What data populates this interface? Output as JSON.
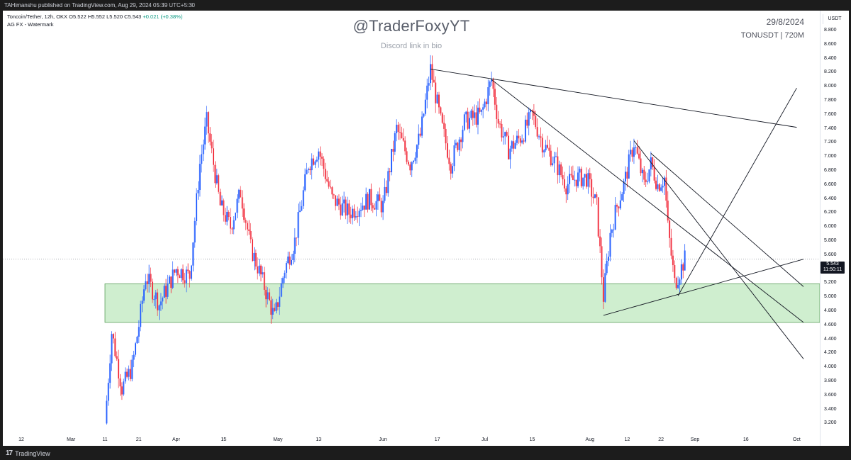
{
  "header": {
    "publish_line": "TAHimanshu published on TradingView.com, Aug 29, 2024 05:39 UTC+5:30"
  },
  "legend": {
    "symbol_line": "Toncoin/Tether, 12h, OKX  O5.522  H5.552  L5.520  C5.543",
    "change": "+0.021 (+0.38%)",
    "indicator": "AG FX - Watermark"
  },
  "watermark": {
    "handle": "@TraderFoxyYT",
    "subtitle": "Discord link in bio",
    "date": "29/8/2024",
    "symbol": "TONUSDT | 720M"
  },
  "price_axis": {
    "currency": "USDT",
    "last_price": "5.543",
    "countdown": "11:50:11"
  },
  "footer": {
    "brand": "TradingView"
  },
  "colors": {
    "up_candle": "#2962ff",
    "down_candle": "#f23645",
    "support_zone": "#bfe8bf",
    "trendline": "#131722"
  },
  "chart_data": {
    "type": "candlestick",
    "symbol": "TONUSDT",
    "timeframe": "12h",
    "ylim": [
      3.1,
      8.9
    ],
    "y_ticks": [
      "8.800",
      "8.600",
      "8.400",
      "8.200",
      "8.000",
      "7.800",
      "7.600",
      "7.400",
      "7.200",
      "7.000",
      "6.800",
      "6.600",
      "6.400",
      "6.200",
      "6.000",
      "5.800",
      "5.600",
      "5.400",
      "5.200",
      "5.000",
      "4.800",
      "4.600",
      "4.400",
      "4.200",
      "4.000",
      "3.800",
      "3.600",
      "3.400",
      "3.200"
    ],
    "x_ticks": [
      "12",
      "Mar",
      "11",
      "21",
      "Apr",
      "15",
      "May",
      "13",
      "Jun",
      "17",
      "Jul",
      "15",
      "Aug",
      "12",
      "22",
      "Sep",
      "16",
      "Oct"
    ],
    "support_zone": {
      "low": 4.64,
      "high": 5.19
    },
    "price_path": [
      [
        "Mar 11",
        3.2
      ],
      [
        "Mar 13",
        4.5
      ],
      [
        "Mar 16",
        3.7
      ],
      [
        "Mar 19",
        4.0
      ],
      [
        "Mar 21",
        4.6
      ],
      [
        "Mar 23",
        5.3
      ],
      [
        "Mar 27",
        4.9
      ],
      [
        "Apr 1",
        5.4
      ],
      [
        "Apr 5",
        5.3
      ],
      [
        "Apr 8",
        6.9
      ],
      [
        "Apr 10",
        7.5
      ],
      [
        "Apr 12",
        6.9
      ],
      [
        "Apr 14",
        6.3
      ],
      [
        "Apr 17",
        6.0
      ],
      [
        "Apr 20",
        6.5
      ],
      [
        "Apr 23",
        5.7
      ],
      [
        "Apr 26",
        5.3
      ],
      [
        "Apr 30",
        4.7
      ],
      [
        "May 3",
        5.4
      ],
      [
        "May 6",
        5.8
      ],
      [
        "May 10",
        6.9
      ],
      [
        "May 13",
        7.1
      ],
      [
        "May 17",
        6.4
      ],
      [
        "May 22",
        6.2
      ],
      [
        "May 28",
        6.4
      ],
      [
        "Jun 1",
        6.3
      ],
      [
        "Jun 5",
        7.4
      ],
      [
        "Jun 9",
        6.9
      ],
      [
        "Jun 12",
        7.3
      ],
      [
        "Jun 15",
        8.25
      ],
      [
        "Jun 18",
        7.5
      ],
      [
        "Jun 21",
        6.9
      ],
      [
        "Jun 25",
        7.5
      ],
      [
        "Jun 30",
        7.6
      ],
      [
        "Jul 3",
        8.1
      ],
      [
        "Jul 5",
        7.5
      ],
      [
        "Jul 8",
        7.1
      ],
      [
        "Jul 12",
        7.3
      ],
      [
        "Jul 15",
        7.6
      ],
      [
        "Jul 18",
        7.2
      ],
      [
        "Jul 22",
        6.9
      ],
      [
        "Jul 25",
        6.6
      ],
      [
        "Jul 28",
        6.7
      ],
      [
        "Jul 31",
        6.7
      ],
      [
        "Aug 3",
        6.3
      ],
      [
        "Aug 5",
        5.0
      ],
      [
        "Aug 7",
        5.9
      ],
      [
        "Aug 9",
        6.3
      ],
      [
        "Aug 11",
        6.6
      ],
      [
        "Aug 14",
        7.2
      ],
      [
        "Aug 17",
        6.6
      ],
      [
        "Aug 19",
        6.9
      ],
      [
        "Aug 21",
        6.6
      ],
      [
        "Aug 23",
        6.7
      ],
      [
        "Aug 24",
        6.0
      ],
      [
        "Aug 26",
        5.2
      ],
      [
        "Aug 27",
        5.3
      ],
      [
        "Aug 29",
        5.543
      ]
    ],
    "trendlines": [
      {
        "from": [
          "Jun 15",
          8.25
        ],
        "to": [
          "Oct 1",
          7.42
        ]
      },
      {
        "from": [
          "Jul 3",
          8.1
        ],
        "to": [
          "Oct 3",
          4.64
        ]
      },
      {
        "from": [
          "Aug 14",
          7.23
        ],
        "to": [
          "Oct 3",
          4.12
        ]
      },
      {
        "from": [
          "Aug 19",
          7.05
        ],
        "to": [
          "Oct 3",
          5.15
        ]
      },
      {
        "from": [
          "Aug 5",
          4.74
        ],
        "to": [
          "Oct 3",
          5.54
        ]
      },
      {
        "from": [
          "Aug 27",
          5.02
        ],
        "to": [
          "Oct 1",
          7.98
        ]
      }
    ],
    "last_price": 5.543
  }
}
